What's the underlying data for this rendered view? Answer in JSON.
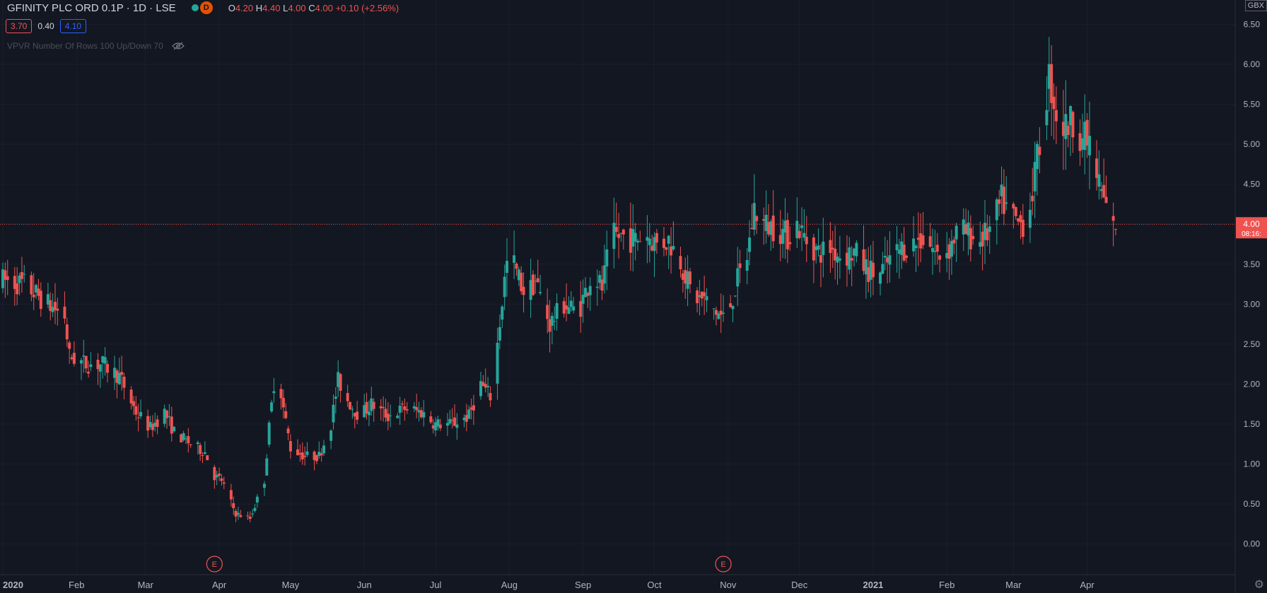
{
  "legend": {
    "symbol": "GFINITY PLC ORD 0.1P · 1D · LSE",
    "badge": "D",
    "o_label": "O",
    "o_value": "4.20",
    "h_label": "H",
    "h_value": "4.40",
    "l_label": "L",
    "l_value": "4.00",
    "c_label": "C",
    "c_value": "4.00",
    "change": "+0.10 (+2.56%)"
  },
  "vpvr": {
    "val_low": "3.70",
    "val_mid": "0.40",
    "val_high": "4.10",
    "label": "VPVR Number Of Rows 100 Up/Down 70"
  },
  "currency": "GBX",
  "colors": {
    "up": "#26a69a",
    "down": "#ef5350",
    "background": "#131722",
    "last_price": "#ef5350"
  },
  "icons": {
    "eye": "eye-crossed-icon",
    "settings": "gear-icon"
  },
  "chart_data": {
    "type": "candlestick",
    "y_range": [
      -0.25,
      6.7
    ],
    "y_ticks": [
      "0.00",
      "0.50",
      "1.00",
      "1.50",
      "2.00",
      "2.50",
      "3.00",
      "3.50",
      "4.00",
      "4.50",
      "5.00",
      "5.50",
      "6.00",
      "6.50"
    ],
    "x_range": [
      "2020-01-01",
      "2021-04-13"
    ],
    "x_ticks": [
      {
        "label": "2020",
        "date": "2020-01-01",
        "bold": true
      },
      {
        "label": "Feb",
        "date": "2020-02-01"
      },
      {
        "label": "Mar",
        "date": "2020-03-01"
      },
      {
        "label": "Apr",
        "date": "2020-04-01"
      },
      {
        "label": "May",
        "date": "2020-05-01"
      },
      {
        "label": "Jun",
        "date": "2020-06-01"
      },
      {
        "label": "Jul",
        "date": "2020-07-01"
      },
      {
        "label": "Aug",
        "date": "2020-08-01"
      },
      {
        "label": "Sep",
        "date": "2020-09-01"
      },
      {
        "label": "Oct",
        "date": "2020-10-01"
      },
      {
        "label": "Nov",
        "date": "2020-11-01"
      },
      {
        "label": "Dec",
        "date": "2020-12-01"
      },
      {
        "label": "2021",
        "date": "2021-01-01",
        "bold": true
      },
      {
        "label": "Feb",
        "date": "2021-02-01"
      },
      {
        "label": "Mar",
        "date": "2021-03-01"
      },
      {
        "label": "Apr",
        "date": "2021-04-01"
      }
    ],
    "last_price": {
      "value": 4.0,
      "label": "4.00",
      "countdown": "08:16:"
    },
    "events": [
      {
        "label": "E",
        "date": "2020-03-30"
      },
      {
        "label": "E",
        "date": "2020-10-30"
      }
    ],
    "trend": [
      [
        "2020-01-01",
        3.3
      ],
      [
        "2020-01-10",
        3.25
      ],
      [
        "2020-01-20",
        3.0
      ],
      [
        "2020-01-27",
        2.85
      ],
      [
        "2020-01-29",
        2.35
      ],
      [
        "2020-02-05",
        2.25
      ],
      [
        "2020-02-12",
        2.25
      ],
      [
        "2020-02-19",
        2.1
      ],
      [
        "2020-02-26",
        1.65
      ],
      [
        "2020-03-03",
        1.45
      ],
      [
        "2020-03-09",
        1.65
      ],
      [
        "2020-03-13",
        1.4
      ],
      [
        "2020-03-20",
        1.25
      ],
      [
        "2020-03-26",
        1.15
      ],
      [
        "2020-03-30",
        0.85
      ],
      [
        "2020-04-02",
        0.8
      ],
      [
        "2020-04-08",
        0.38
      ],
      [
        "2020-04-14",
        0.32
      ],
      [
        "2020-04-20",
        0.8
      ],
      [
        "2020-04-22",
        1.45
      ],
      [
        "2020-04-25",
        2.3
      ],
      [
        "2020-04-28",
        1.7
      ],
      [
        "2020-05-01",
        1.2
      ],
      [
        "2020-05-07",
        1.1
      ],
      [
        "2020-05-13",
        1.1
      ],
      [
        "2020-05-18",
        1.5
      ],
      [
        "2020-05-21",
        2.05
      ],
      [
        "2020-05-25",
        1.8
      ],
      [
        "2020-05-30",
        1.6
      ],
      [
        "2020-06-04",
        1.75
      ],
      [
        "2020-06-11",
        1.6
      ],
      [
        "2020-06-18",
        1.7
      ],
      [
        "2020-06-25",
        1.65
      ],
      [
        "2020-07-01",
        1.5
      ],
      [
        "2020-07-08",
        1.5
      ],
      [
        "2020-07-15",
        1.6
      ],
      [
        "2020-07-20",
        2.0
      ],
      [
        "2020-07-24",
        1.85
      ],
      [
        "2020-07-27",
        2.5
      ],
      [
        "2020-07-30",
        3.3
      ],
      [
        "2020-08-01",
        3.7
      ],
      [
        "2020-08-04",
        3.4
      ],
      [
        "2020-08-08",
        3.1
      ],
      [
        "2020-08-12",
        3.3
      ],
      [
        "2020-08-18",
        2.75
      ],
      [
        "2020-08-24",
        3.0
      ],
      [
        "2020-08-30",
        2.9
      ],
      [
        "2020-09-05",
        3.4
      ],
      [
        "2020-09-09",
        3.2
      ],
      [
        "2020-09-13",
        3.85
      ],
      [
        "2020-09-18",
        3.85
      ],
      [
        "2020-09-23",
        3.8
      ],
      [
        "2020-09-27",
        3.9
      ],
      [
        "2020-10-02",
        3.75
      ],
      [
        "2020-10-07",
        3.8
      ],
      [
        "2020-10-12",
        3.55
      ],
      [
        "2020-10-17",
        3.1
      ],
      [
        "2020-10-22",
        3.05
      ],
      [
        "2020-10-27",
        2.9
      ],
      [
        "2020-10-31",
        2.8
      ],
      [
        "2020-11-05",
        3.3
      ],
      [
        "2020-11-09",
        3.6
      ],
      [
        "2020-11-12",
        4.2
      ],
      [
        "2020-11-16",
        4.0
      ],
      [
        "2020-11-22",
        3.95
      ],
      [
        "2020-11-26",
        3.85
      ],
      [
        "2020-11-30",
        4.0
      ],
      [
        "2020-12-04",
        3.8
      ],
      [
        "2020-12-09",
        3.65
      ],
      [
        "2020-12-14",
        3.7
      ],
      [
        "2020-12-19",
        3.6
      ],
      [
        "2020-12-24",
        3.65
      ],
      [
        "2020-12-29",
        3.45
      ],
      [
        "2021-01-03",
        3.35
      ],
      [
        "2021-01-08",
        3.55
      ],
      [
        "2021-01-13",
        3.7
      ],
      [
        "2021-01-18",
        3.75
      ],
      [
        "2021-01-23",
        3.85
      ],
      [
        "2021-01-28",
        3.6
      ],
      [
        "2021-02-02",
        3.7
      ],
      [
        "2021-02-06",
        3.95
      ],
      [
        "2021-02-11",
        3.85
      ],
      [
        "2021-02-15",
        3.8
      ],
      [
        "2021-02-20",
        3.95
      ],
      [
        "2021-02-24",
        4.3
      ],
      [
        "2021-02-27",
        4.15
      ],
      [
        "2021-03-03",
        4.0
      ],
      [
        "2021-03-07",
        4.05
      ],
      [
        "2021-03-10",
        4.6
      ],
      [
        "2021-03-13",
        5.2
      ],
      [
        "2021-03-16",
        5.85
      ],
      [
        "2021-03-19",
        5.4
      ],
      [
        "2021-03-22",
        5.2
      ],
      [
        "2021-03-26",
        5.3
      ],
      [
        "2021-03-30",
        5.1
      ],
      [
        "2021-04-02",
        5.0
      ],
      [
        "2021-04-05",
        4.6
      ],
      [
        "2021-04-08",
        4.3
      ],
      [
        "2021-04-10",
        4.1
      ],
      [
        "2021-04-11",
        3.9
      ],
      [
        "2021-04-13",
        4.0
      ]
    ]
  }
}
